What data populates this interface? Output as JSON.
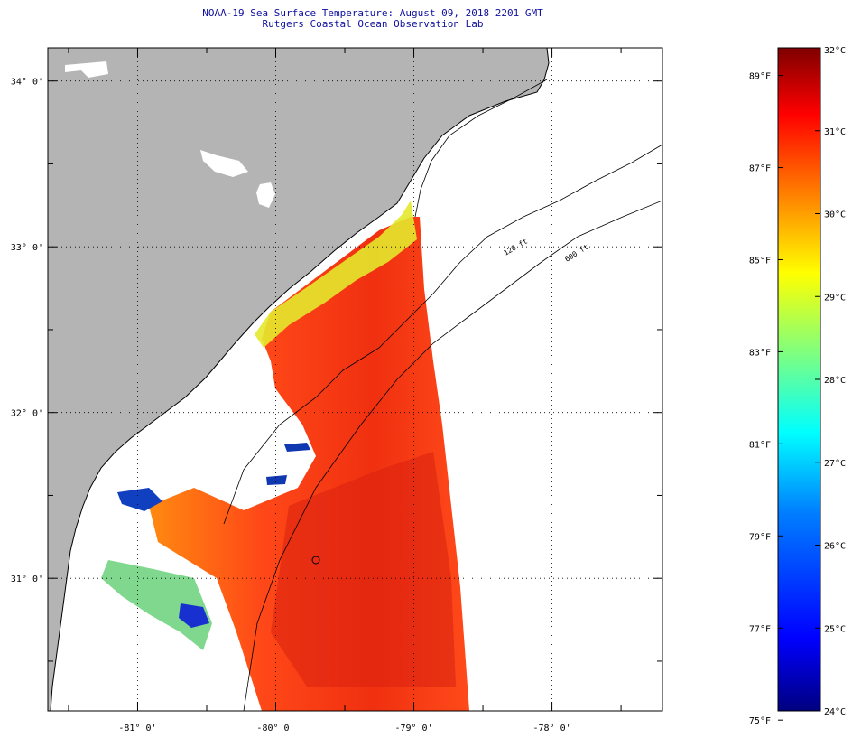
{
  "header": {
    "title_line1": "NOAA-19 Sea Surface Temperature:  August 09, 2018 2201 GMT",
    "title_line2": "Rutgers Coastal Ocean Observation Lab"
  },
  "map": {
    "lon_range": [
      -81.65,
      -77.2
    ],
    "lat_range": [
      30.2,
      34.2
    ],
    "lon_ticks": [
      {
        "value": -81,
        "label": "-81° 0'"
      },
      {
        "value": -80,
        "label": "-80° 0'"
      },
      {
        "value": -79,
        "label": "-79° 0'"
      },
      {
        "value": -78,
        "label": "-78° 0'"
      }
    ],
    "lat_ticks": [
      {
        "value": 34,
        "label": "34° 0'"
      },
      {
        "value": 33,
        "label": "33° 0'"
      },
      {
        "value": 32,
        "label": "32° 0'"
      },
      {
        "value": 31,
        "label": "31° 0'"
      }
    ],
    "isobath_labels": [
      "120 ft",
      "600 ft"
    ],
    "colors": {
      "land": "#b4b4b4",
      "ocean": "#ffffff",
      "coast": "#000000",
      "grid": "#000000"
    }
  },
  "colorbar": {
    "celsius_range": [
      24,
      32
    ],
    "celsius_labels": [
      {
        "value": 32,
        "label": "32°C"
      },
      {
        "value": 31,
        "label": "31°C"
      },
      {
        "value": 30,
        "label": "30°C"
      },
      {
        "value": 29,
        "label": "29°C"
      },
      {
        "value": 28,
        "label": "28°C"
      },
      {
        "value": 27,
        "label": "27°C"
      },
      {
        "value": 26,
        "label": "26°C"
      },
      {
        "value": 25,
        "label": "25°C"
      },
      {
        "value": 24,
        "label": "24°C"
      }
    ],
    "fahrenheit_labels": [
      {
        "value": 89,
        "label": "89°F"
      },
      {
        "value": 87,
        "label": "87°F"
      },
      {
        "value": 85,
        "label": "85°F"
      },
      {
        "value": 83,
        "label": "83°F"
      },
      {
        "value": 81,
        "label": "81°F"
      },
      {
        "value": 79,
        "label": "79°F"
      },
      {
        "value": 77,
        "label": "77°F"
      },
      {
        "value": 75,
        "label": "75°F"
      }
    ],
    "palette": [
      "#00007f",
      "#0000ff",
      "#007fff",
      "#00ffff",
      "#7fff7f",
      "#ffff00",
      "#ff7f00",
      "#ff0000",
      "#7f0000"
    ]
  }
}
